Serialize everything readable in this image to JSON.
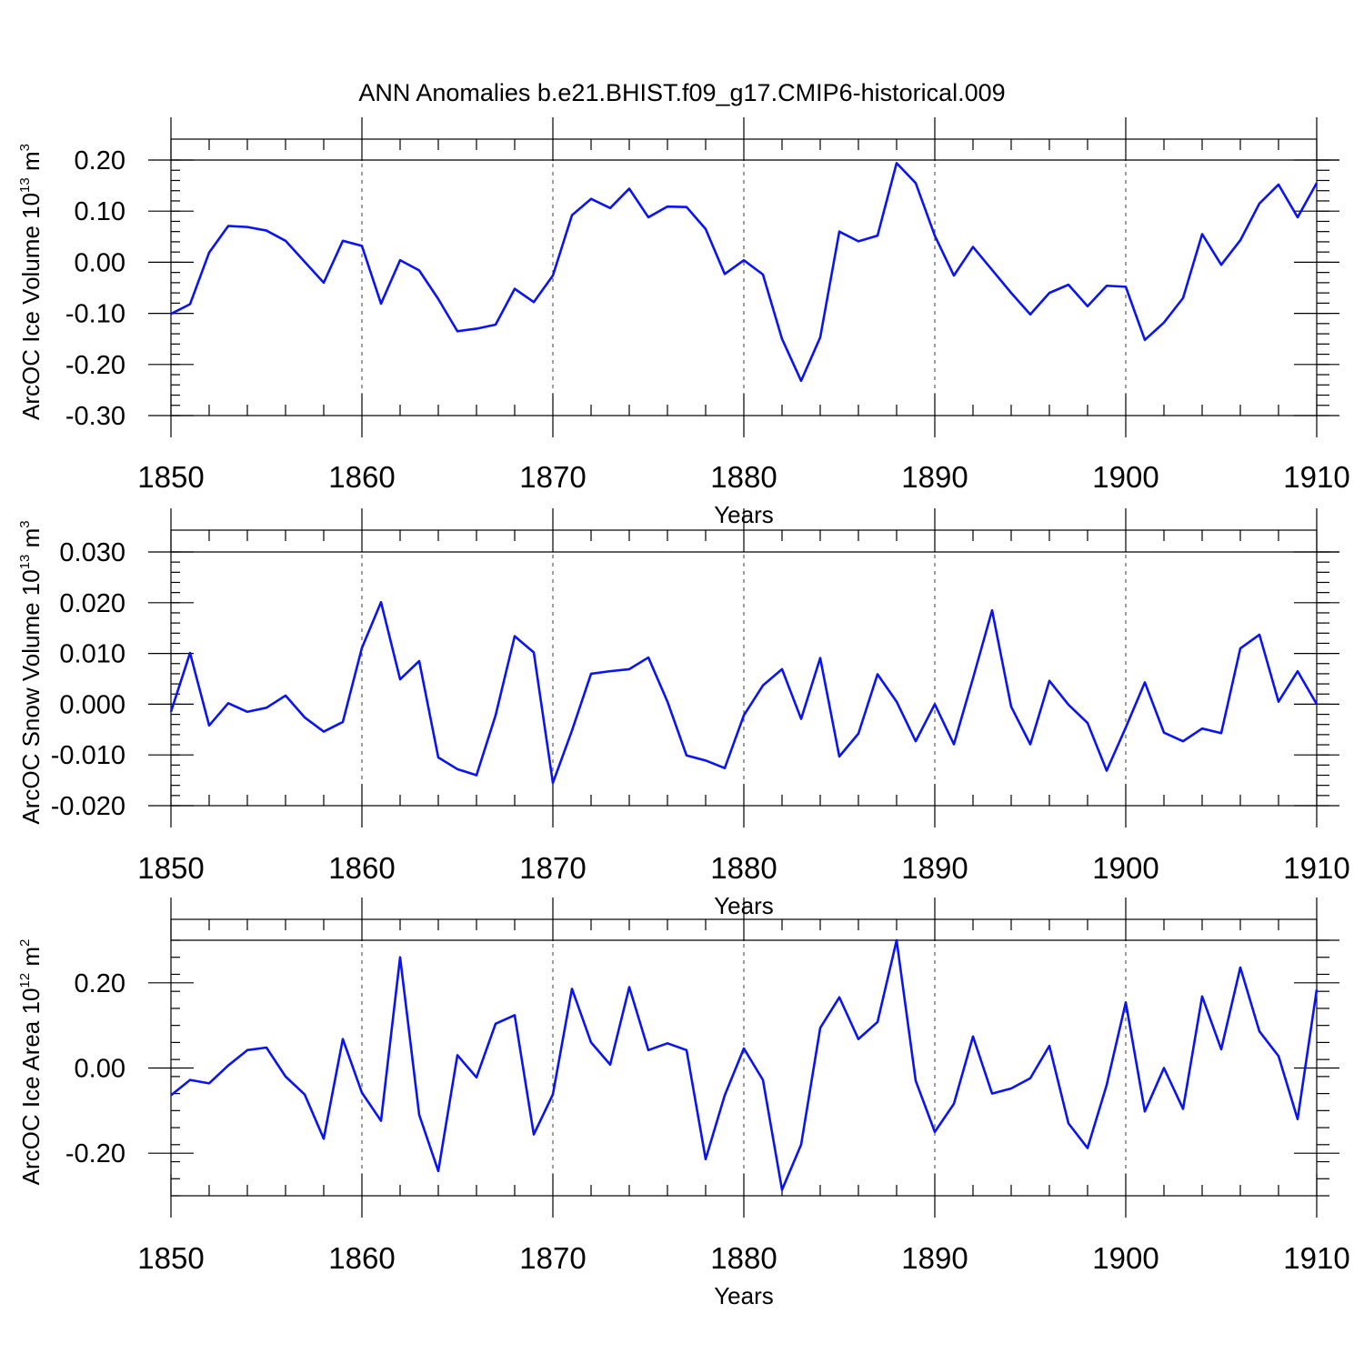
{
  "figure": {
    "title": "ANN Anomalies b.e21.BHIST.f09_g17.CMIP6-historical.009",
    "line_color": "#0a14f0"
  },
  "chart_data": [
    {
      "type": "line",
      "title": "",
      "xlabel": "Years",
      "ylabel_main": "ArcOC Ice Volume 10",
      "ylabel_exp": "13",
      "ylabel_unit": "m",
      "ylabel_unit_exp": "3",
      "xlim": [
        1850,
        1910
      ],
      "ylim": [
        -0.3,
        0.2
      ],
      "xticks": [
        1850,
        1860,
        1870,
        1880,
        1890,
        1900,
        1910
      ],
      "xtick_labels": [
        "1850",
        "1860",
        "1870",
        "1880",
        "1890",
        "1900",
        "1910"
      ],
      "yticks": [
        0.2,
        0.1,
        0.0,
        -0.1,
        -0.2,
        -0.3
      ],
      "ytick_labels": [
        "0.20",
        "0.10",
        "0.00",
        "-0.10",
        "-0.20",
        "-0.30"
      ],
      "x_start": 1850,
      "series": [
        {
          "name": "ArcOC Ice Volume",
          "values": [
            -0.101,
            -0.082,
            0.019,
            0.071,
            0.069,
            0.062,
            0.042,
            0.001,
            -0.04,
            0.042,
            0.032,
            -0.081,
            0.004,
            -0.016,
            -0.072,
            -0.135,
            -0.13,
            -0.122,
            -0.052,
            -0.078,
            -0.026,
            0.092,
            0.124,
            0.106,
            0.144,
            0.088,
            0.109,
            0.108,
            0.065,
            -0.023,
            0.004,
            -0.024,
            -0.15,
            -0.232,
            -0.147,
            0.06,
            0.041,
            0.052,
            0.194,
            0.155,
            0.052,
            -0.026,
            0.03,
            -0.015,
            -0.06,
            -0.102,
            -0.06,
            -0.044,
            -0.086,
            -0.046,
            -0.048,
            -0.152,
            -0.118,
            -0.07,
            0.055,
            -0.005,
            0.043,
            0.115,
            0.152,
            0.088,
            0.155
          ]
        }
      ]
    },
    {
      "type": "line",
      "title": "",
      "xlabel": "Years",
      "ylabel_main": "ArcOC Snow Volume 10",
      "ylabel_exp": "13",
      "ylabel_unit": "m",
      "ylabel_unit_exp": "3",
      "xlim": [
        1850,
        1910
      ],
      "ylim": [
        -0.02,
        0.03
      ],
      "xticks": [
        1850,
        1860,
        1870,
        1880,
        1890,
        1900,
        1910
      ],
      "xtick_labels": [
        "1850",
        "1860",
        "1870",
        "1880",
        "1890",
        "1900",
        "1910"
      ],
      "yticks": [
        0.03,
        0.02,
        0.01,
        0.0,
        -0.01,
        -0.02
      ],
      "ytick_labels": [
        "0.030",
        "0.020",
        "0.010",
        "0.000",
        "-0.010",
        "-0.020"
      ],
      "x_start": 1850,
      "series": [
        {
          "name": "ArcOC Snow Volume",
          "values": [
            -0.0015,
            0.0101,
            -0.0042,
            0.0002,
            -0.0015,
            -0.0007,
            0.0017,
            -0.0026,
            -0.0054,
            -0.0035,
            0.0111,
            0.0201,
            0.0049,
            0.0085,
            -0.0105,
            -0.0128,
            -0.014,
            -0.0022,
            0.0134,
            0.0102,
            -0.0155,
            -0.0052,
            0.006,
            0.0065,
            0.0069,
            0.0092,
            0.0005,
            -0.0101,
            -0.0111,
            -0.0126,
            -0.0022,
            0.0037,
            0.0069,
            -0.0029,
            0.0091,
            -0.0103,
            -0.0058,
            0.0059,
            0.0005,
            -0.0073,
            0.0,
            -0.0079,
            0.0051,
            0.0185,
            -0.0005,
            -0.0079,
            0.0046,
            -0.0001,
            -0.0037,
            -0.0131,
            -0.0046,
            0.0043,
            -0.0056,
            -0.0073,
            -0.0048,
            -0.0057,
            0.011,
            0.0137,
            0.0005,
            0.0065,
            0.0
          ]
        }
      ]
    },
    {
      "type": "line",
      "title": "",
      "xlabel": "Years",
      "ylabel_main": "ArcOC Ice Area 10",
      "ylabel_exp": "12",
      "ylabel_unit": "m",
      "ylabel_unit_exp": "2",
      "xlim": [
        1850,
        1910
      ],
      "ylim": [
        -0.3,
        0.3
      ],
      "xticks": [
        1850,
        1860,
        1870,
        1880,
        1890,
        1900,
        1910
      ],
      "xtick_labels": [
        "1850",
        "1860",
        "1870",
        "1880",
        "1890",
        "1900",
        "1910"
      ],
      "yticks": [
        0.2,
        0.0,
        -0.2
      ],
      "ytick_labels": [
        "0.20",
        "0.00",
        "-0.20"
      ],
      "x_start": 1850,
      "series": [
        {
          "name": "ArcOC Ice Area",
          "values": [
            -0.064,
            -0.028,
            -0.036,
            0.006,
            0.042,
            0.048,
            -0.02,
            -0.062,
            -0.166,
            0.068,
            -0.058,
            -0.124,
            0.26,
            -0.11,
            -0.242,
            0.03,
            -0.022,
            0.104,
            0.124,
            -0.156,
            -0.062,
            0.186,
            0.06,
            0.008,
            0.19,
            0.042,
            0.058,
            0.042,
            -0.214,
            -0.064,
            0.046,
            -0.028,
            -0.286,
            -0.18,
            0.094,
            0.166,
            0.068,
            0.108,
            0.3,
            -0.03,
            -0.15,
            -0.084,
            0.074,
            -0.06,
            -0.048,
            -0.024,
            0.052,
            -0.13,
            -0.188,
            -0.04,
            0.154,
            -0.102,
            0.0,
            -0.096,
            0.168,
            0.044,
            0.236,
            0.086,
            0.028,
            -0.12,
            0.184
          ]
        }
      ]
    }
  ]
}
